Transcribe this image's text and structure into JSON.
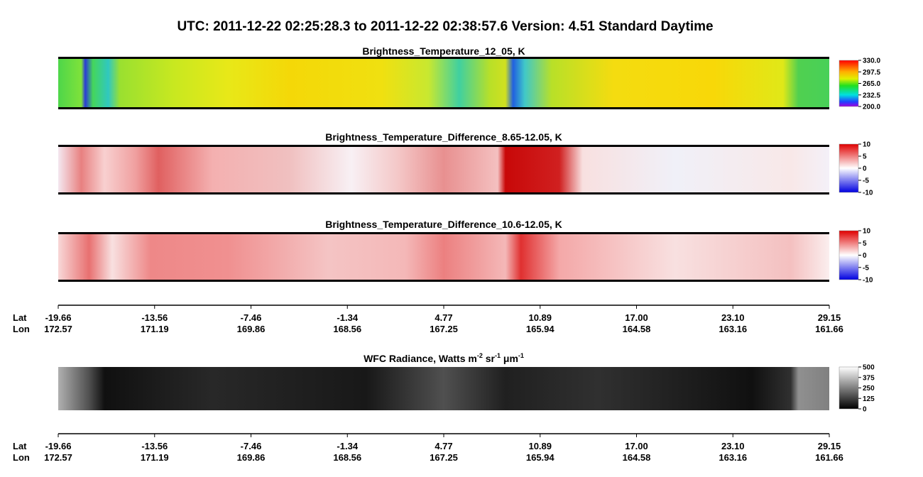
{
  "header": {
    "title": "UTC:  2011-12-22   02:25:28.3  to  2011-12-22   02:38:57.6    Version: 4.51  Standard Daytime"
  },
  "panels": [
    {
      "title": [
        "Brightness_Temperature_12_05, K"
      ],
      "range": [
        200,
        330
      ],
      "ticks": [
        {
          "value": 330,
          "label": "330.0"
        },
        {
          "value": 297.5,
          "label": "297.5"
        },
        {
          "value": 265,
          "label": "265.0"
        },
        {
          "value": 232.5,
          "label": "232.5"
        },
        {
          "value": 200,
          "label": "200.0"
        }
      ]
    },
    {
      "title": [
        "Brightness_Temperature_Difference_8.65-12.05, K"
      ],
      "range": [
        -10,
        10
      ],
      "ticks": [
        10,
        5,
        0,
        -5,
        -10
      ]
    },
    {
      "title": [
        "Brightness_Temperature_Difference_10.6-12.05, K"
      ],
      "range": [
        -10,
        10
      ],
      "ticks": [
        10,
        5,
        0,
        -5,
        -10
      ]
    },
    {
      "title": [
        "WFC Radiance, Watts m",
        "-2",
        " sr",
        "-1",
        " μm",
        "-1"
      ],
      "range": [
        0,
        500
      ],
      "ticks": [
        500,
        375,
        250,
        125,
        0
      ]
    }
  ],
  "axes": [
    {
      "lat_label": "Lat",
      "lon_label": "Lon",
      "lat": [
        "-19.66",
        "-13.56",
        "-7.46",
        "-1.34",
        "4.77",
        "10.89",
        "17.00",
        "23.10",
        "29.15"
      ],
      "lon": [
        "172.57",
        "171.19",
        "169.86",
        "168.56",
        "167.25",
        "165.94",
        "164.58",
        "163.16",
        "161.66"
      ]
    },
    {
      "lat_label": "Lat",
      "lon_label": "Lon",
      "lat": [
        "-19.66",
        "-13.56",
        "-7.46",
        "-1.34",
        "4.77",
        "10.89",
        "17.00",
        "23.10",
        "29.15"
      ],
      "lon": [
        "172.57",
        "171.19",
        "169.86",
        "168.56",
        "167.25",
        "165.94",
        "164.58",
        "163.16",
        "161.66"
      ]
    }
  ]
}
